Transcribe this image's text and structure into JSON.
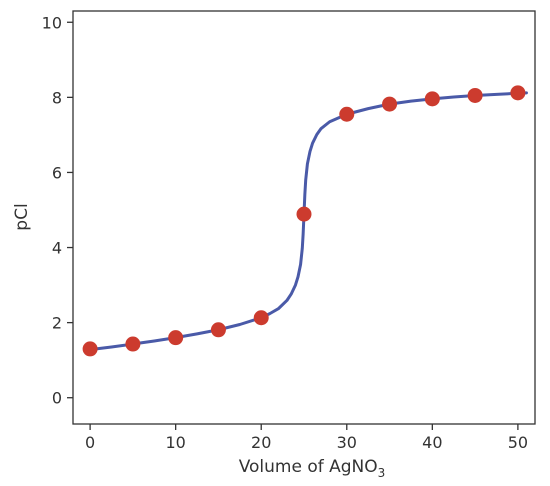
{
  "chart_data": {
    "type": "line",
    "xlabel": "Volume of AgNO",
    "xlabel_subscript": "3",
    "ylabel": "pCl",
    "xlim": [
      -2,
      52
    ],
    "ylim": [
      -0.7,
      10.3
    ],
    "x_ticks": [
      0,
      10,
      20,
      30,
      40,
      50
    ],
    "y_ticks": [
      0,
      2,
      4,
      6,
      8,
      10
    ],
    "x_tick_labels": [
      "0",
      "10",
      "20",
      "30",
      "40",
      "50"
    ],
    "y_tick_labels": [
      "0",
      "2",
      "4",
      "6",
      "8",
      "10"
    ],
    "grid": false,
    "series": [
      {
        "kind": "curve",
        "color": "#4a5aa8",
        "x": [
          0,
          2.5,
          5,
          7.5,
          10,
          12.5,
          15,
          17.5,
          20,
          21,
          22,
          23,
          23.5,
          24,
          24.3,
          24.6,
          24.8,
          24.9,
          25,
          25.1,
          25.2,
          25.4,
          25.7,
          26,
          26.5,
          27,
          28,
          30,
          32.5,
          35,
          37.5,
          40,
          42.5,
          45,
          47.5,
          50,
          51
        ],
        "y": [
          1.28,
          1.35,
          1.43,
          1.51,
          1.6,
          1.7,
          1.81,
          1.95,
          2.13,
          2.24,
          2.37,
          2.59,
          2.76,
          3.0,
          3.22,
          3.55,
          3.98,
          4.36,
          4.89,
          5.42,
          5.8,
          6.23,
          6.56,
          6.78,
          7.01,
          7.17,
          7.35,
          7.55,
          7.7,
          7.82,
          7.9,
          7.96,
          8.01,
          8.05,
          8.08,
          8.11,
          8.12
        ]
      },
      {
        "kind": "points",
        "color": "#cc3b2e",
        "x": [
          0,
          5,
          10,
          15,
          20,
          25,
          30,
          35,
          40,
          45,
          50
        ],
        "y": [
          1.3,
          1.43,
          1.6,
          1.81,
          2.13,
          4.89,
          7.55,
          7.82,
          7.96,
          8.05,
          8.12
        ]
      }
    ]
  }
}
